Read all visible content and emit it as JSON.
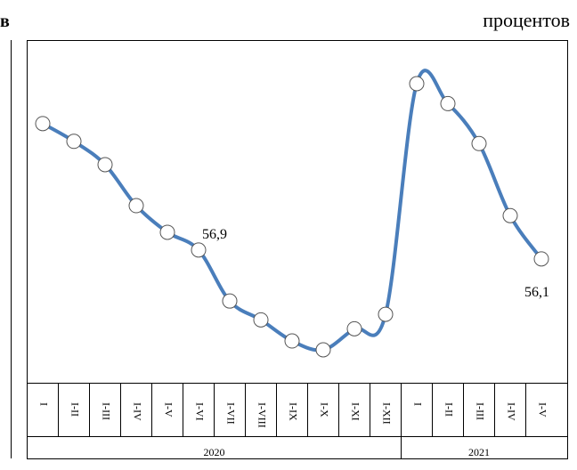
{
  "chart_data": {
    "type": "line",
    "title": "в",
    "units": "процентов",
    "color": "#4a7ebb",
    "groups": [
      {
        "name": "2020",
        "categories": [
          "I",
          "I-II",
          "I-III",
          "I-IV",
          "I-V",
          "I-VI",
          "I-VII",
          "I-VIII",
          "I-IX",
          "I-X",
          "I-XI",
          "I-XII"
        ],
        "values": [
          68.3,
          66.7,
          64.6,
          60.9,
          58.5,
          56.9,
          52.3,
          50.6,
          48.7,
          47.9,
          49.8,
          51.1
        ],
        "value_labels": [
          null,
          null,
          null,
          null,
          null,
          "56,9",
          null,
          null,
          null,
          null,
          null,
          null
        ]
      },
      {
        "name": "2021",
        "categories": [
          "I",
          "I-II",
          "I-III",
          "I-IV",
          "I-V"
        ],
        "values": [
          71.9,
          70.1,
          66.5,
          60.0,
          56.1
        ],
        "value_labels": [
          null,
          null,
          null,
          null,
          "56,1"
        ]
      }
    ]
  }
}
